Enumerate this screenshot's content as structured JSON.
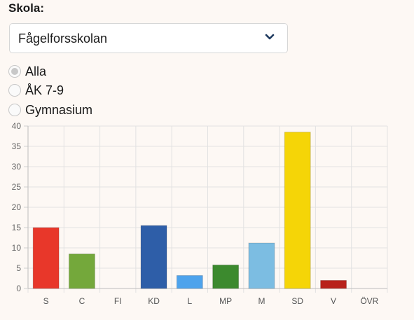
{
  "filter": {
    "school_label": "Skola:",
    "school_value": "Fågelforsskolan",
    "radio_options": [
      {
        "label": "Alla",
        "checked": true
      },
      {
        "label": "ÅK 7-9",
        "checked": false
      },
      {
        "label": "Gymnasium",
        "checked": false
      }
    ]
  },
  "chart_data": {
    "type": "bar",
    "categories": [
      "S",
      "C",
      "FI",
      "KD",
      "L",
      "MP",
      "M",
      "SD",
      "V",
      "ÖVR"
    ],
    "values": [
      15,
      8.5,
      0,
      15.5,
      3.2,
      5.8,
      11.2,
      38.5,
      2,
      0
    ],
    "colors": [
      "#e8372a",
      "#74a83b",
      "#e2a0b4",
      "#2e5ea8",
      "#4ea3ec",
      "#3c8a2e",
      "#7cbde2",
      "#f5d507",
      "#b8221b",
      "#bbbbbb"
    ],
    "ylim": [
      0,
      40
    ],
    "yticks": [
      0,
      5,
      10,
      15,
      20,
      25,
      30,
      35,
      40
    ],
    "grid": true,
    "title": "",
    "xlabel": "",
    "ylabel": ""
  }
}
